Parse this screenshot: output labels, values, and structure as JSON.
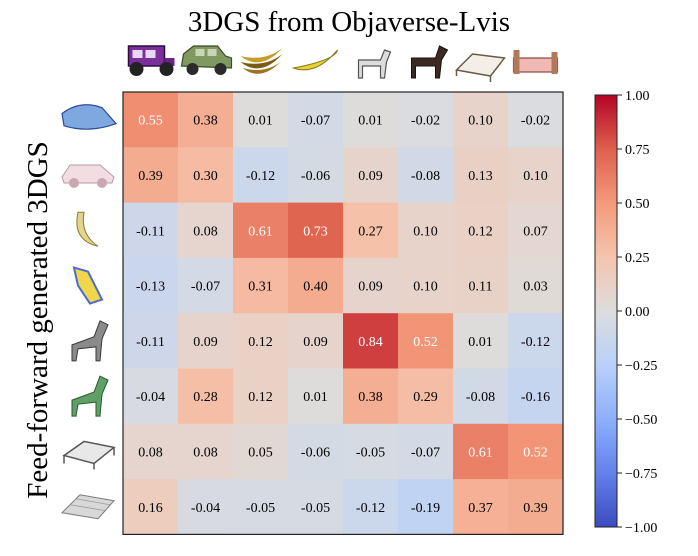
{
  "chart_data": {
    "type": "heatmap",
    "title": "3DGS from Objaverse-Lvis",
    "xlabel": "",
    "ylabel": "Feed-forward generated 3DGS",
    "columns": [
      "vintage-car",
      "suv",
      "bananas",
      "banana",
      "white-horse",
      "dark-horse",
      "bed",
      "pink-bed"
    ],
    "rows": [
      "sports-car",
      "pink-car",
      "banana",
      "yellow-blue-banana",
      "gray-horse",
      "green-horse",
      "bed",
      "mesh-bed"
    ],
    "values": [
      [
        0.55,
        0.38,
        0.01,
        -0.07,
        0.01,
        -0.02,
        0.1,
        -0.02
      ],
      [
        0.39,
        0.3,
        -0.12,
        -0.06,
        0.09,
        -0.08,
        0.13,
        0.1
      ],
      [
        -0.11,
        0.08,
        0.61,
        0.73,
        0.27,
        0.1,
        0.12,
        0.07
      ],
      [
        -0.13,
        -0.07,
        0.31,
        0.4,
        0.09,
        0.1,
        0.11,
        0.03
      ],
      [
        -0.11,
        0.09,
        0.12,
        0.09,
        0.84,
        0.52,
        0.01,
        -0.12
      ],
      [
        -0.04,
        0.28,
        0.12,
        0.01,
        0.38,
        0.29,
        -0.08,
        -0.16
      ],
      [
        0.08,
        0.08,
        0.05,
        -0.06,
        -0.05,
        -0.07,
        0.61,
        0.52
      ],
      [
        0.16,
        -0.04,
        -0.05,
        -0.05,
        -0.12,
        -0.19,
        0.37,
        0.39
      ]
    ],
    "colorbar": {
      "range": [
        -1.0,
        1.0
      ],
      "ticks": [
        1.0,
        0.75,
        0.5,
        0.25,
        0.0,
        -0.25,
        -0.5,
        -0.75,
        -1.0
      ],
      "tick_labels": [
        "1.00",
        "0.75",
        "0.50",
        "0.25",
        "0.00",
        "−0.25",
        "−0.50",
        "−0.75",
        "−1.00"
      ]
    },
    "colormap": "coolwarm",
    "colors": {
      "low": "#3b4cc0",
      "mid": "#dddddd",
      "high": "#b40426"
    }
  }
}
